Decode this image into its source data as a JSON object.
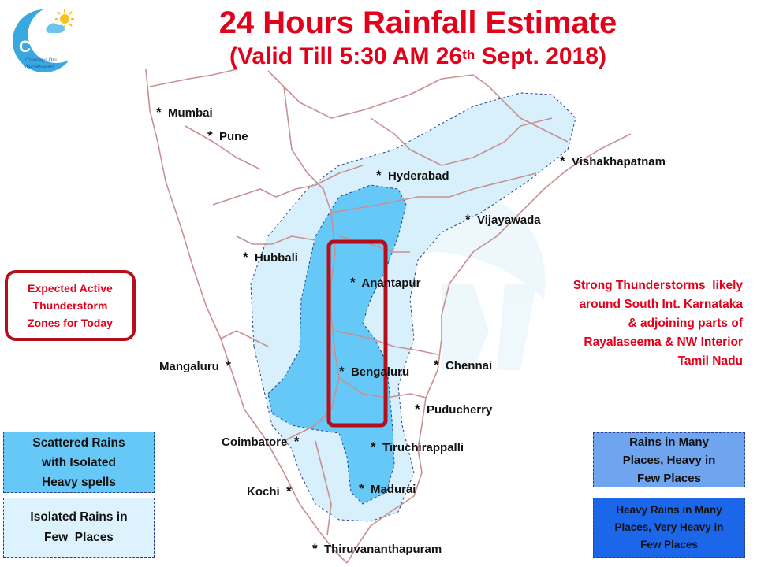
{
  "title": {
    "line1": "24 Hours Rainfall Estimate",
    "line2_pre": "(Valid Till 5:30 AM 26",
    "line2_sup": "th",
    "line2_post": " Sept. 2018)"
  },
  "logo": {
    "text": "COMK",
    "sub1": "Chennaiyil Oru",
    "sub2": "Mazhaikaalam"
  },
  "cities": {
    "mumbai": "Mumbai",
    "pune": "Pune",
    "hyderabad": "Hyderabad",
    "vishakhapatnam": "Vishakhapatnam",
    "vijayawada": "Vijayawada",
    "hubbali": "Hubbali",
    "anantapur": "Anantapur",
    "mangaluru": "Mangaluru",
    "bengaluru": "Bengaluru",
    "chennai": "Chennai",
    "puducherry": "Puducherry",
    "coimbatore": "Coimbatore",
    "tiruchirappalli": "Tiruchirappalli",
    "kochi": "Kochi",
    "madurai": "Madurai",
    "thiruvananthapuram": "Thiruvananthapuram"
  },
  "star": "*",
  "notes": {
    "thunderstorm_zone": [
      "Expected Active",
      "Thunderstorm",
      "Zones for Today"
    ],
    "forecast": [
      "Strong Thunderstorms  likely",
      "around South Int. Karnataka",
      "& adjoining parts of",
      "Rayalaseema & NW Interior",
      "Tamil Nadu"
    ]
  },
  "legend": {
    "scattered": [
      "Scattered Rains",
      "with Isolated",
      "Heavy spells"
    ],
    "isolated": [
      "Isolated Rains in",
      "Few  Places"
    ],
    "many": [
      "Rains in Many",
      "Places, Heavy in",
      "Few Places"
    ],
    "heavy_many": [
      "Heavy Rains in Many",
      "Places, Very Heavy in",
      "Few Places"
    ]
  },
  "colors": {
    "title_red": "#e3001b",
    "zone_box_border": "#b3101c",
    "isolated_fill": "#dcf2fd",
    "scattered_fill": "#66c8f6",
    "many_fill": "#6fa4ee",
    "heavy_many_fill": "#1c66ea",
    "border_lines": "#c89090"
  }
}
